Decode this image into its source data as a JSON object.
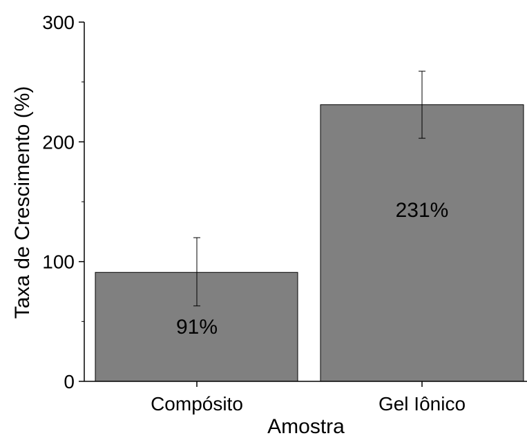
{
  "chart_data": {
    "type": "bar",
    "categories": [
      "Compósito",
      "Gel Iônico"
    ],
    "values": [
      91,
      231
    ],
    "error": [
      {
        "low": 63,
        "high": 120
      },
      {
        "low": 203,
        "high": 259
      }
    ],
    "data_labels": [
      "91%",
      "231%"
    ],
    "title": "",
    "xlabel": "Amostra",
    "ylabel": "Taxa de Crescimento (%)",
    "ylim": [
      0,
      300
    ],
    "yticks": [
      0,
      100,
      200,
      300
    ],
    "ytick_labels": [
      "0",
      "100",
      "200",
      "300"
    ],
    "grid": false,
    "legend": "none",
    "bar_color": "#808080"
  }
}
